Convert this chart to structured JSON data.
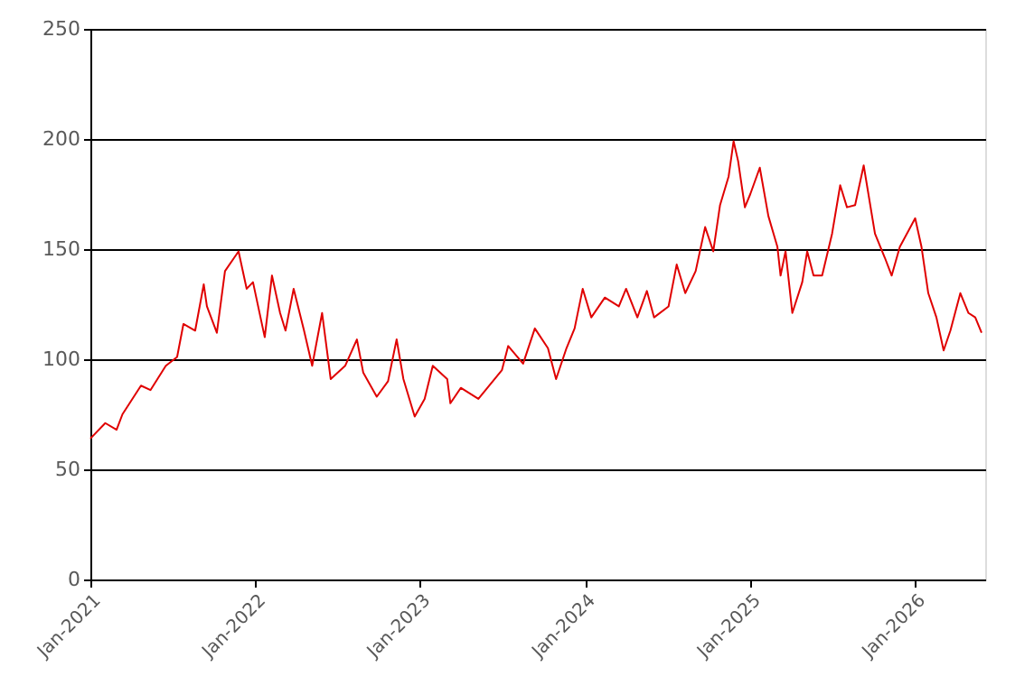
{
  "chart_data": {
    "type": "line",
    "x": [
      "2021-01-01",
      "2021-02-03",
      "2021-02-28",
      "2021-03-13",
      "2021-04-23",
      "2021-05-14",
      "2021-06-17",
      "2021-07-12",
      "2021-07-26",
      "2021-08-21",
      "2021-09-09",
      "2021-09-16",
      "2021-10-08",
      "2021-10-26",
      "2021-11-25",
      "2021-12-13",
      "2021-12-27",
      "2022-01-22",
      "2022-02-07",
      "2022-02-25",
      "2022-03-09",
      "2022-03-27",
      "2022-04-19",
      "2022-05-07",
      "2022-05-29",
      "2022-06-17",
      "2022-07-19",
      "2022-08-14",
      "2022-08-28",
      "2022-09-27",
      "2022-10-22",
      "2022-11-10",
      "2022-11-25",
      "2022-12-20",
      "2023-01-11",
      "2023-01-29",
      "2023-03-02",
      "2023-03-09",
      "2023-04-01",
      "2023-05-10",
      "2023-07-01",
      "2023-07-15",
      "2023-08-17",
      "2023-09-12",
      "2023-10-11",
      "2023-10-29",
      "2023-11-21",
      "2023-12-09",
      "2023-12-27",
      "2024-01-15",
      "2024-02-14",
      "2024-03-16",
      "2024-04-01",
      "2024-04-26",
      "2024-05-17",
      "2024-06-02",
      "2024-07-04",
      "2024-07-22",
      "2024-08-10",
      "2024-09-02",
      "2024-09-23",
      "2024-10-11",
      "2024-10-26",
      "2024-11-14",
      "2024-11-25",
      "2024-12-05",
      "2024-12-20",
      "2025-01-01",
      "2025-01-22",
      "2025-02-10",
      "2025-03-02",
      "2025-03-09",
      "2025-03-20",
      "2025-04-04",
      "2025-04-26",
      "2025-05-07",
      "2025-05-21",
      "2025-06-09",
      "2025-07-01",
      "2025-07-19",
      "2025-08-03",
      "2025-08-21",
      "2025-09-09",
      "2025-10-04",
      "2025-10-26",
      "2025-11-10",
      "2025-11-28",
      "2026-01-01",
      "2026-01-15",
      "2026-01-30",
      "2026-02-17",
      "2026-03-05",
      "2026-03-20",
      "2026-04-11",
      "2026-04-29",
      "2026-05-14",
      "2026-05-28"
    ],
    "series": [
      {
        "color": "#e00000",
        "values": [
          64,
          71,
          68,
          75,
          88,
          86,
          97,
          101,
          116,
          113,
          134,
          124,
          112,
          140,
          149,
          132,
          135,
          110,
          138,
          121,
          113,
          132,
          113,
          97,
          121,
          91,
          97,
          109,
          94,
          83,
          90,
          109,
          91,
          74,
          82,
          97,
          91,
          80,
          87,
          82,
          95,
          106,
          98,
          114,
          105,
          91,
          105,
          114,
          132,
          119,
          128,
          124,
          132,
          119,
          131,
          119,
          124,
          143,
          130,
          140,
          160,
          149,
          170,
          183,
          199,
          190,
          169,
          175,
          187,
          165,
          151,
          138,
          149,
          121,
          135,
          149,
          138,
          138,
          157,
          179,
          169,
          170,
          188,
          157,
          146,
          138,
          151,
          164,
          151,
          130,
          119,
          104,
          113,
          130,
          121,
          119,
          112
        ]
      }
    ],
    "xlim": [
      "2021-01-01",
      "2026-06-05"
    ],
    "xticks": [
      {
        "value": "2021-01-01",
        "label": "Jan-2021"
      },
      {
        "value": "2022-01-01",
        "label": "Jan-2022"
      },
      {
        "value": "2023-01-01",
        "label": "Jan-2023"
      },
      {
        "value": "2024-01-01",
        "label": "Jan-2024"
      },
      {
        "value": "2025-01-01",
        "label": "Jan-2025"
      },
      {
        "value": "2026-01-01",
        "label": "Jan-2026"
      }
    ],
    "ylim": [
      0,
      250
    ],
    "yticks": [
      0,
      50,
      100,
      150,
      200,
      250
    ],
    "grid": "y",
    "marker": "none",
    "line_style": "solid"
  }
}
